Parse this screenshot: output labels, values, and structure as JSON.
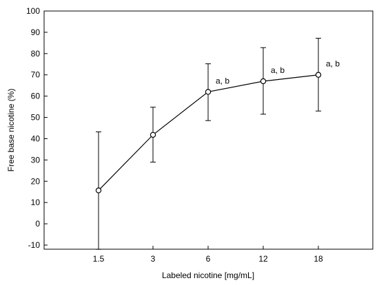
{
  "chart_data": {
    "type": "line",
    "xlabel": "Labeled nicotine [mg/mL]",
    "ylabel": "Free base nicotine (%)",
    "categories": [
      "1.5",
      "3",
      "6",
      "12",
      "18"
    ],
    "ylim": [
      -12,
      100
    ],
    "yticks": [
      -10,
      0,
      10,
      20,
      30,
      40,
      50,
      60,
      70,
      80,
      90,
      100
    ],
    "grid": false,
    "series": [
      {
        "values": [
          15.7,
          41.8,
          62.0,
          67.0,
          70.0
        ],
        "err_low": [
          -12.0,
          29.0,
          48.5,
          51.5,
          53.0
        ],
        "err_high": [
          43.2,
          54.8,
          75.2,
          82.8,
          87.2
        ],
        "marker": "open-circle",
        "color": "#000000"
      }
    ],
    "annotations": [
      {
        "category": "6",
        "text": "a, b"
      },
      {
        "category": "12",
        "text": "a, b"
      },
      {
        "category": "18",
        "text": "a, b"
      }
    ]
  }
}
